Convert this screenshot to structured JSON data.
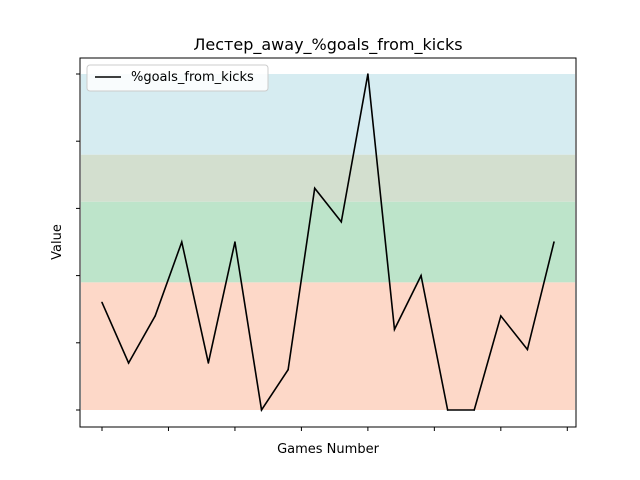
{
  "chart_data": {
    "type": "line",
    "title": "Лестер_away_%goals_from_kicks",
    "xlabel": "Games Number",
    "ylabel": "Value",
    "x": [
      1,
      2,
      3,
      4,
      5,
      6,
      7,
      8,
      9,
      10,
      11,
      12,
      13,
      14,
      15,
      16,
      17,
      18
    ],
    "ylim": [
      0,
      1
    ],
    "series": [
      {
        "name": "%goals_from_kicks",
        "color": "#000000",
        "values": [
          0.32,
          0.14,
          0.28,
          0.5,
          0.14,
          0.5,
          0.0,
          0.12,
          0.66,
          0.56,
          1.0,
          0.24,
          0.4,
          0.0,
          0.0,
          0.28,
          0.18,
          0.5
        ]
      }
    ],
    "bands": [
      {
        "from": 0.0,
        "to": 0.38,
        "color": "#fdd8c8"
      },
      {
        "from": 0.38,
        "to": 0.62,
        "color": "#bde4ca"
      },
      {
        "from": 0.62,
        "to": 0.76,
        "color": "#d3dfcf"
      },
      {
        "from": 0.76,
        "to": 1.0,
        "color": "#d6ecf1"
      }
    ],
    "y_tick_labels_shown": false,
    "x_tick_labels_shown": false,
    "grid": false,
    "legend_position": "top-left"
  }
}
